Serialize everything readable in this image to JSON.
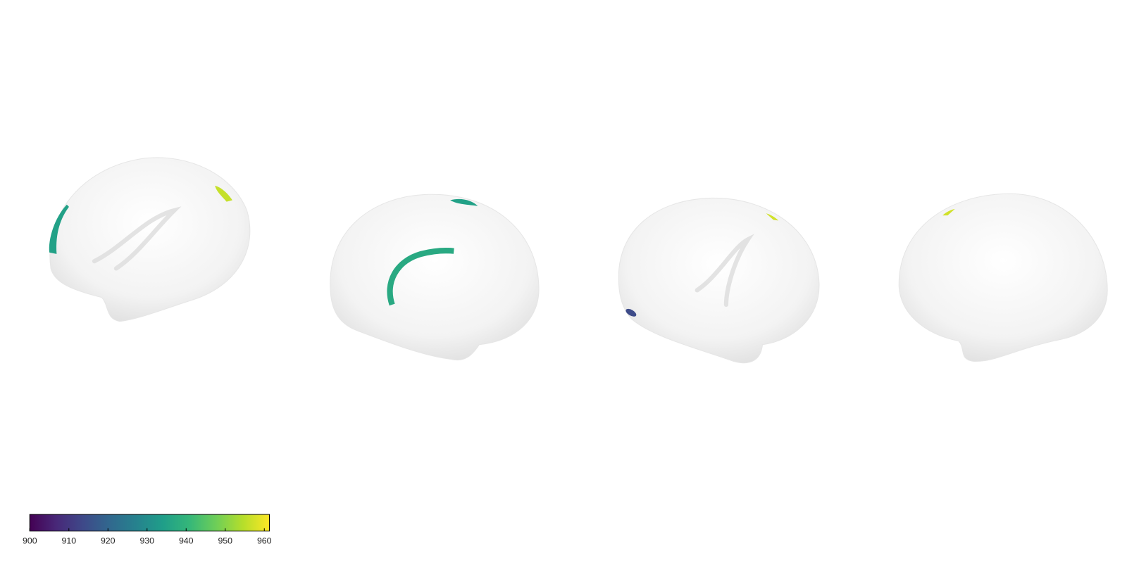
{
  "chart_data": {
    "type": "colorbar",
    "colorbar": {
      "lim": [
        900,
        961.3
      ],
      "ticks": [
        900,
        910,
        920,
        930,
        940,
        950,
        960
      ],
      "colors": [
        "#440154",
        "#482878",
        "#3e4989",
        "#31688e",
        "#26828e",
        "#1f9e89",
        "#35b779",
        "#6ece58",
        "#b5de2b",
        "#fde725"
      ]
    },
    "region_values": [
      935,
      956,
      937,
      935,
      914,
      957,
      957
    ]
  }
}
